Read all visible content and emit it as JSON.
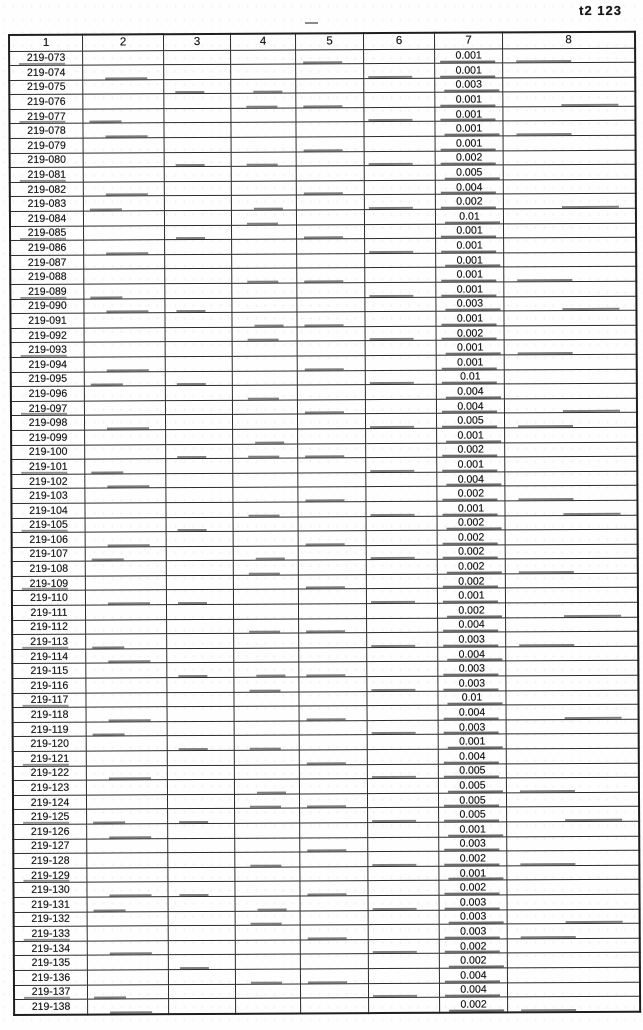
{
  "page": {
    "corner_label": "t2 123",
    "ink_color": "#1c1c1c",
    "paper_color": "#fefefe"
  },
  "table": {
    "columns": [
      "1",
      "2",
      "3",
      "4",
      "5",
      "6",
      "7",
      "8"
    ],
    "rows": [
      {
        "id": "219-073",
        "col7": "0.001"
      },
      {
        "id": "219-074",
        "col7": "0.001"
      },
      {
        "id": "219-075",
        "col7": "0.003"
      },
      {
        "id": "219-076",
        "col7": "0.001"
      },
      {
        "id": "219-077",
        "col7": "0.001"
      },
      {
        "id": "219-078",
        "col7": "0.001"
      },
      {
        "id": "219-079",
        "col7": "0.001"
      },
      {
        "id": "219-080",
        "col7": "0.002"
      },
      {
        "id": "219-081",
        "col7": "0.005"
      },
      {
        "id": "219-082",
        "col7": "0.004"
      },
      {
        "id": "219-083",
        "col7": "0.002"
      },
      {
        "id": "219-084",
        "col7": "0.01"
      },
      {
        "id": "219-085",
        "col7": "0.001"
      },
      {
        "id": "219-086",
        "col7": "0.001"
      },
      {
        "id": "219-087",
        "col7": "0.001"
      },
      {
        "id": "219-088",
        "col7": "0.001"
      },
      {
        "id": "219-089",
        "col7": "0.001"
      },
      {
        "id": "219-090",
        "col7": "0.003"
      },
      {
        "id": "219-091",
        "col7": "0.001"
      },
      {
        "id": "219-092",
        "col7": "0.002"
      },
      {
        "id": "219-093",
        "col7": "0.001"
      },
      {
        "id": "219-094",
        "col7": "0.001"
      },
      {
        "id": "219-095",
        "col7": "0.01"
      },
      {
        "id": "219-096",
        "col7": "0.004"
      },
      {
        "id": "219-097",
        "col7": "0.004"
      },
      {
        "id": "219-098",
        "col7": "0.005"
      },
      {
        "id": "219-099",
        "col7": "0.001"
      },
      {
        "id": "219-100",
        "col7": "0.002"
      },
      {
        "id": "219-101",
        "col7": "0.001"
      },
      {
        "id": "219-102",
        "col7": "0.004"
      },
      {
        "id": "219-103",
        "col7": "0.002"
      },
      {
        "id": "219-104",
        "col7": "0.001"
      },
      {
        "id": "219-105",
        "col7": "0.002"
      },
      {
        "id": "219-106",
        "col7": "0.002"
      },
      {
        "id": "219-107",
        "col7": "0.002"
      },
      {
        "id": "219-108",
        "col7": "0.002"
      },
      {
        "id": "219-109",
        "col7": "0.002"
      },
      {
        "id": "219-110",
        "col7": "0.001"
      },
      {
        "id": "219-111",
        "col7": "0.002"
      },
      {
        "id": "219-112",
        "col7": "0.004"
      },
      {
        "id": "219-113",
        "col7": "0.003"
      },
      {
        "id": "219-114",
        "col7": "0.004"
      },
      {
        "id": "219-115",
        "col7": "0.003"
      },
      {
        "id": "219-116",
        "col7": "0.003"
      },
      {
        "id": "219-117",
        "col7": "0.01"
      },
      {
        "id": "219-118",
        "col7": "0.004"
      },
      {
        "id": "219-119",
        "col7": "0.003"
      },
      {
        "id": "219-120",
        "col7": "0.001"
      },
      {
        "id": "219-121",
        "col7": "0.004"
      },
      {
        "id": "219-122",
        "col7": "0.005"
      },
      {
        "id": "219-123",
        "col7": "0.005"
      },
      {
        "id": "219-124",
        "col7": "0.005"
      },
      {
        "id": "219-125",
        "col7": "0.005"
      },
      {
        "id": "219-126",
        "col7": "0.001"
      },
      {
        "id": "219-127",
        "col7": "0.003"
      },
      {
        "id": "219-128",
        "col7": "0.002"
      },
      {
        "id": "219-129",
        "col7": "0.001"
      },
      {
        "id": "219-130",
        "col7": "0.002"
      },
      {
        "id": "219-131",
        "col7": "0.003"
      },
      {
        "id": "219-132",
        "col7": "0.003"
      },
      {
        "id": "219-133",
        "col7": "0.003"
      },
      {
        "id": "219-134",
        "col7": "0.002"
      },
      {
        "id": "219-135",
        "col7": "0.002"
      },
      {
        "id": "219-136",
        "col7": "0.004"
      },
      {
        "id": "219-137",
        "col7": "0.004"
      },
      {
        "id": "219-138",
        "col7": "0.002"
      }
    ]
  }
}
